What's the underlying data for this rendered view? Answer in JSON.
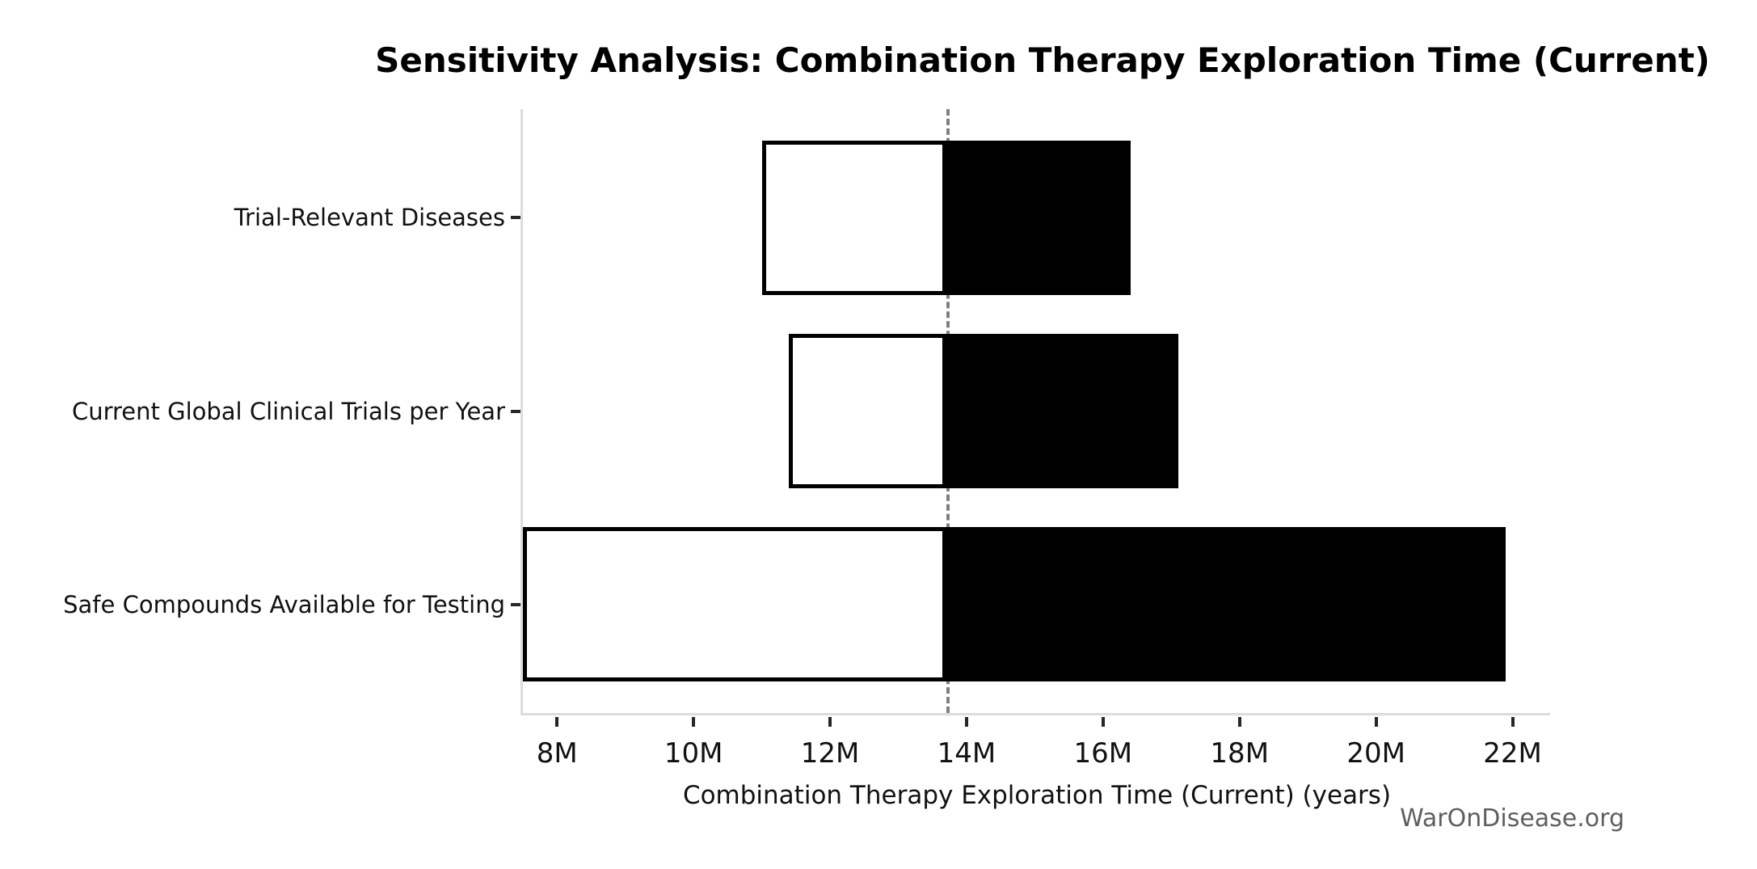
{
  "chart_data": {
    "type": "bar",
    "subtype": "tornado-sensitivity",
    "orientation": "horizontal",
    "title": "Sensitivity Analysis: Combination Therapy Exploration Time (Current)",
    "xlabel": "Combination Therapy Exploration Time (Current) (years)",
    "ylabel": "",
    "baseline_value": 13.7,
    "xlim": [
      7.5,
      22.55
    ],
    "grid": false,
    "legend": "none",
    "rows": [
      {
        "label": "Trial-Relevant Diseases",
        "low": 11.0,
        "high": 16.4
      },
      {
        "label": "Current Global Clinical Trials per Year",
        "low": 11.4,
        "high": 17.1
      },
      {
        "label": "Safe Compounds Available for Testing",
        "low": 7.5,
        "high": 21.9
      }
    ],
    "xticks": {
      "values": [
        8,
        10,
        12,
        14,
        16,
        18,
        20,
        22
      ],
      "labels": [
        "8M",
        "10M",
        "12M",
        "14M",
        "16M",
        "18M",
        "20M",
        "22M"
      ]
    },
    "colors": {
      "low_fill": "#ffffff",
      "high_fill": "#000000",
      "bar_edge": "#000000",
      "baseline_dash": "#7f7f7f",
      "spine": "#dcdcdc",
      "tick": "#262626",
      "text": "#111111",
      "watermark": "#5f5f5f",
      "background": "#ffffff"
    }
  },
  "watermark": {
    "text": "WarOnDisease.org"
  }
}
